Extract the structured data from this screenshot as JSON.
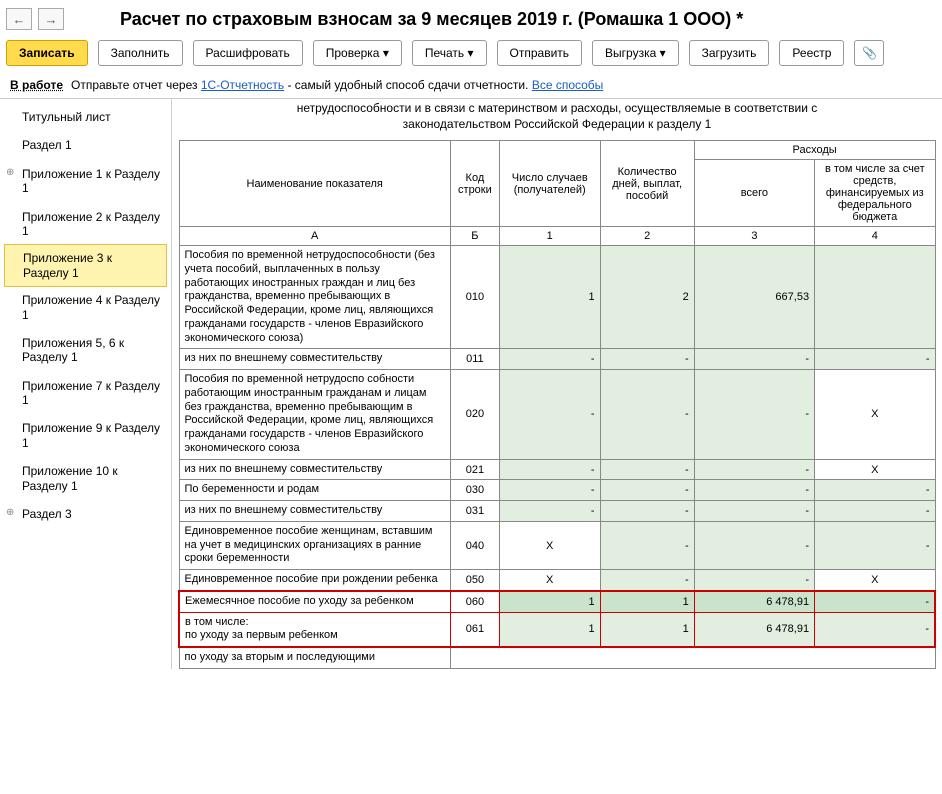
{
  "header": {
    "title": "Расчет по страховым взносам за 9 месяцев 2019 г. (Ромашка 1 ООО) *"
  },
  "toolbar": {
    "save": "Записать",
    "fill": "Заполнить",
    "decode": "Расшифровать",
    "check": "Проверка ▾",
    "print": "Печать ▾",
    "send": "Отправить",
    "upload": "Выгрузка ▾",
    "load": "Загрузить",
    "registry": "Реестр"
  },
  "infobar": {
    "status": "В работе",
    "text1": "Отправьте отчет через",
    "link1": "1С-Отчетность",
    "text2": "- самый удобный способ сдачи отчетности.",
    "link2": "Все способы"
  },
  "sidebar": {
    "items": [
      {
        "label": "Титульный лист"
      },
      {
        "label": "Раздел 1"
      },
      {
        "label": "Приложение 1 к Разделу 1",
        "exp": true
      },
      {
        "label": "Приложение 2 к Разделу 1"
      },
      {
        "label": "Приложение 3 к Разделу 1",
        "active": true
      },
      {
        "label": "Приложение 4 к Разделу 1"
      },
      {
        "label": "Приложения 5, 6 к Разделу 1"
      },
      {
        "label": "Приложение 7 к Разделу 1"
      },
      {
        "label": "Приложение 9 к Разделу 1"
      },
      {
        "label": "Приложение 10 к Разделу 1"
      },
      {
        "label": "Раздел 3",
        "exp": true
      }
    ]
  },
  "section": {
    "title_line1": "нетрудоспособности и в связи с материнством и расходы, осуществляемые в соответствии с",
    "title_line2": "законодательством Российской Федерации к разделу 1"
  },
  "table": {
    "th_name": "Наименование показателя",
    "th_code": "Код строки",
    "th_cases": "Число случаев (получателей)",
    "th_days": "Количество дней, выплат, пособий",
    "th_exp": "Расходы",
    "th_total": "всего",
    "th_fed": "в том числе за счет средств, финансируемых из федерального бюджета",
    "colA": "А",
    "colB": "Б",
    "col1": "1",
    "col2": "2",
    "col3": "3",
    "col4": "4",
    "rows": [
      {
        "desc": "Пособия по временной нетрудоспособ­ности (без учета пособий, выплаченных в пользу работающих иностранных граждан и лиц без гражданства, временно пребывающих в Российской Федерации, кроме лиц, являющихся гражданами государств - членов Евразийского экономического союза)",
        "code": "010",
        "v1": "1",
        "v2": "2",
        "v3": "667,53",
        "v4": ""
      },
      {
        "desc": "из них по внешнему совместительству",
        "code": "011",
        "indent": true,
        "v1": "-",
        "v2": "-",
        "v3": "-",
        "v4": "-"
      },
      {
        "desc": "Пособия по временной нетрудоспо собно­сти работающим иностранным гражданам и лицам без гражданства, временно пребывающим в Российской Федерации, кроме лиц, являющихся гражданами государств - членов Евразийского экономического союза",
        "code": "020",
        "v1": "-",
        "v2": "-",
        "v3": "-",
        "v4": "X",
        "v4x": true
      },
      {
        "desc": "из них по внешнему совместительству",
        "code": "021",
        "indent": true,
        "v1": "-",
        "v2": "-",
        "v3": "-",
        "v4": "X",
        "v4x": true
      },
      {
        "desc": "По беременности и родам",
        "code": "030",
        "v1": "-",
        "v2": "-",
        "v3": "-",
        "v4": "-"
      },
      {
        "desc": "из них по внешнему совместительству",
        "code": "031",
        "indent": true,
        "v1": "-",
        "v2": "-",
        "v3": "-",
        "v4": "-"
      },
      {
        "desc": "Единовременное пособие женщинам, вставшим на учет в медицинских органи­зациях в ранние сроки беременности",
        "code": "040",
        "v1": "X",
        "v1x": true,
        "v2": "-",
        "v3": "-",
        "v4": "-"
      },
      {
        "desc": "Единовременное пособие при рождении ребенка",
        "code": "050",
        "v1": "X",
        "v1x": true,
        "v2": "-",
        "v3": "-",
        "v4": "X",
        "v4x": true
      },
      {
        "desc": "Ежемесячное пособие по уходу за ребенком",
        "code": "060",
        "hl": true,
        "hlTop": true,
        "dark": true,
        "v1": "1",
        "v2": "1",
        "v3": "6 478,91",
        "v4": "-"
      },
      {
        "desc": "в том числе:\nпо уходу за первым ребенком",
        "code": "061",
        "indent": true,
        "hl": true,
        "hlBot": true,
        "v1": "1",
        "v2": "1",
        "v3": "6 478,91",
        "v4": "-"
      },
      {
        "desc": "по уходу за вторым и последующими",
        "code": "",
        "indent": true,
        "partial": true
      }
    ]
  }
}
